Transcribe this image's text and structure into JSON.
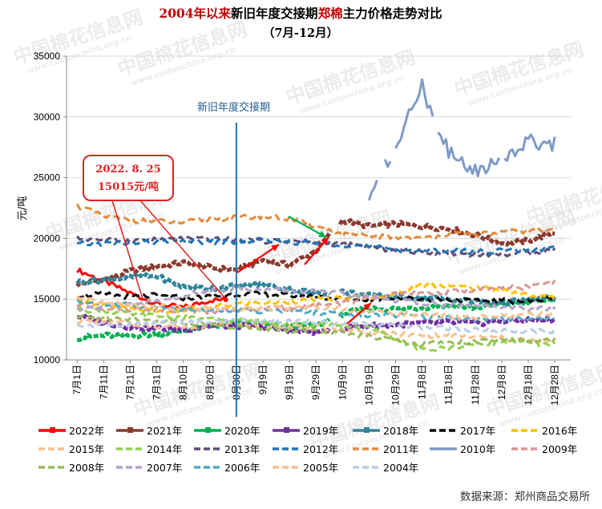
{
  "chart_data": {
    "type": "line",
    "title_parts": [
      {
        "text": "2004年以来",
        "color": "#c00000"
      },
      {
        "text": "新旧年度交接期",
        "color": "#000000"
      },
      {
        "text": "郑棉",
        "color": "#c00000"
      },
      {
        "text": "主力价格走势对比",
        "color": "#000000"
      }
    ],
    "subtitle": "（7月-12月）",
    "ylabel": "元/吨",
    "ylim": [
      10000,
      35000
    ],
    "yticks": [
      10000,
      15000,
      20000,
      25000,
      30000,
      35000
    ],
    "x_labels": [
      "7月1日",
      "7月11日",
      "7月21日",
      "7月31日",
      "8月10日",
      "8月20日",
      "8月30日",
      "9月9日",
      "9月19日",
      "9月29日",
      "10月9日",
      "10月19日",
      "10月29日",
      "11月8日",
      "11月18日",
      "11月28日",
      "12月8日",
      "12月18日",
      "12月28日"
    ],
    "vline": {
      "index": 6,
      "label": "新旧年度交接期"
    },
    "annotation": {
      "line1": "2022. 8. 25",
      "line2": "15015元/吨"
    },
    "source": "数据来源：郑州商品交易所",
    "watermark": "中国棉花信息网",
    "watermark_url": "www.cottonchina.org.cn",
    "series": [
      {
        "name": "2022年",
        "color": "#ff0000",
        "style": "solid",
        "end": 5.6,
        "anchors": [
          17400,
          16500,
          15500,
          14600,
          14300,
          14900,
          15015
        ]
      },
      {
        "name": "2021年",
        "color": "#8b3a2e",
        "style": "solid-seg",
        "anchors": [
          16200,
          16600,
          17300,
          17700,
          18000,
          17600,
          17400,
          18200,
          17800,
          19000,
          21500,
          21000,
          21200,
          21000,
          20800,
          20300,
          19600,
          19800,
          20500
        ]
      },
      {
        "name": "2020年",
        "color": "#00b050",
        "style": "solid-seg",
        "anchors": [
          11800,
          12000,
          12000,
          12100,
          12400,
          12800,
          13000,
          12900,
          12700,
          12800,
          13800,
          14200,
          14200,
          14300,
          14500,
          14300,
          14600,
          14800,
          15000
        ]
      },
      {
        "name": "2019年",
        "color": "#7030a0",
        "style": "solid-seg",
        "anchors": [
          13600,
          13100,
          12700,
          12600,
          12500,
          12800,
          12800,
          12700,
          12400,
          12300,
          12600,
          12800,
          12900,
          13000,
          13100,
          13000,
          13200,
          13300,
          13300
        ]
      },
      {
        "name": "2018年",
        "color": "#31859c",
        "style": "solid-seg",
        "anchors": [
          16400,
          16600,
          16800,
          16900,
          16000,
          15900,
          16100,
          16200,
          15800,
          15500,
          15600,
          15300,
          15200,
          15100,
          15000,
          14800,
          14700,
          14900,
          15100
        ]
      },
      {
        "name": "2017年",
        "color": "#000000",
        "style": "dash",
        "anchors": [
          15300,
          15400,
          15200,
          15300,
          15100,
          15200,
          15400,
          15400,
          15300,
          15200,
          15000,
          15000,
          15100,
          15000,
          15000,
          14800,
          14900,
          14800,
          15100
        ]
      },
      {
        "name": "2016年",
        "color": "#ffc000",
        "style": "dash",
        "anchors": [
          15000,
          14500,
          14200,
          14000,
          14100,
          14300,
          14600,
          14700,
          14800,
          15000,
          15100,
          15200,
          15400,
          16200,
          16100,
          15900,
          15800,
          15300,
          15100
        ]
      },
      {
        "name": "2015年",
        "color": "#f9bf8f",
        "style": "dash",
        "anchors": [
          13200,
          13200,
          13000,
          12800,
          12700,
          12800,
          13000,
          12900,
          12800,
          12700,
          12500,
          12300,
          12100,
          12000,
          12000,
          11900,
          11800,
          11600,
          11500
        ]
      },
      {
        "name": "2014年",
        "color": "#92d050",
        "style": "dash",
        "anchors": [
          14200,
          14000,
          13800,
          13600,
          13500,
          13300,
          13300,
          13100,
          13000,
          12900,
          12800,
          12600,
          11800,
          10800,
          11000,
          11300,
          11500,
          11400,
          11300
        ]
      },
      {
        "name": "2013年",
        "color": "#604a7b",
        "style": "dash",
        "anchors": [
          20000,
          19900,
          19800,
          19900,
          20000,
          19900,
          19900,
          19800,
          19800,
          19700,
          19500,
          19300,
          19000,
          18900,
          18800,
          18700,
          18700,
          18800,
          19100
        ]
      },
      {
        "name": "2012年",
        "color": "#1f75b5",
        "style": "dash",
        "anchors": [
          19500,
          19600,
          19600,
          19700,
          19800,
          19700,
          19700,
          19800,
          19700,
          19600,
          19500,
          19300,
          19100,
          19000,
          19000,
          18900,
          19000,
          19000,
          19200
        ]
      },
      {
        "name": "2011年",
        "color": "#e28b3b",
        "style": "dash",
        "anchors": [
          22700,
          21800,
          21500,
          21400,
          21300,
          21600,
          21700,
          21800,
          21600,
          21000,
          20300,
          20200,
          20100,
          20000,
          20400,
          20300,
          20500,
          20600,
          20700
        ]
      },
      {
        "name": "2010年",
        "color": "#7f9ac7",
        "style": "solid-gap",
        "anchors": [
          null,
          null,
          null,
          null,
          null,
          null,
          null,
          null,
          null,
          null,
          null,
          23500,
          27500,
          32500,
          27000,
          25500,
          26500,
          28000,
          27800
        ]
      },
      {
        "name": "2009年",
        "color": "#d99694",
        "style": "dash",
        "anchors": [
          14500,
          14300,
          14200,
          14200,
          14100,
          14000,
          14100,
          14200,
          14300,
          14500,
          14700,
          15000,
          15500,
          15400,
          15600,
          15800,
          15900,
          16000,
          16400
        ]
      },
      {
        "name": "2008年",
        "color": "#9bbb59",
        "style": "dash",
        "anchors": [
          13500,
          13500,
          13400,
          13200,
          13100,
          12900,
          12700,
          12600,
          12400,
          12400,
          12300,
          11900,
          11600,
          11300,
          11500,
          11500,
          11600,
          11600,
          11600
        ]
      },
      {
        "name": "2007年",
        "color": "#b3a2c7",
        "style": "dash",
        "anchors": [
          14200,
          14400,
          14600,
          14800,
          15300,
          15700,
          15900,
          15800,
          15700,
          15600,
          15400,
          15200,
          14900,
          14700,
          14500,
          14400,
          14300,
          14200,
          14200
        ]
      },
      {
        "name": "2006年",
        "color": "#4bacc6",
        "style": "dash",
        "anchors": [
          14800,
          14600,
          14500,
          14300,
          14200,
          14100,
          14100,
          14000,
          14000,
          13900,
          13800,
          13700,
          13700,
          13600,
          13500,
          13400,
          13400,
          13400,
          13500
        ]
      },
      {
        "name": "2005年",
        "color": "#fac090",
        "style": "dash",
        "anchors": [
          15000,
          14700,
          14500,
          14400,
          14300,
          14200,
          14100,
          14200,
          14300,
          14400,
          14200,
          14000,
          13800,
          13700,
          13600,
          13500,
          13600,
          13700,
          13800
        ]
      },
      {
        "name": "2004年",
        "color": "#b9cde5",
        "style": "dash",
        "anchors": [
          12800,
          12900,
          12900,
          13000,
          13100,
          13100,
          13200,
          13300,
          13200,
          13100,
          13000,
          12900,
          12800,
          12700,
          12600,
          12500,
          12400,
          12400,
          12400
        ]
      }
    ]
  }
}
